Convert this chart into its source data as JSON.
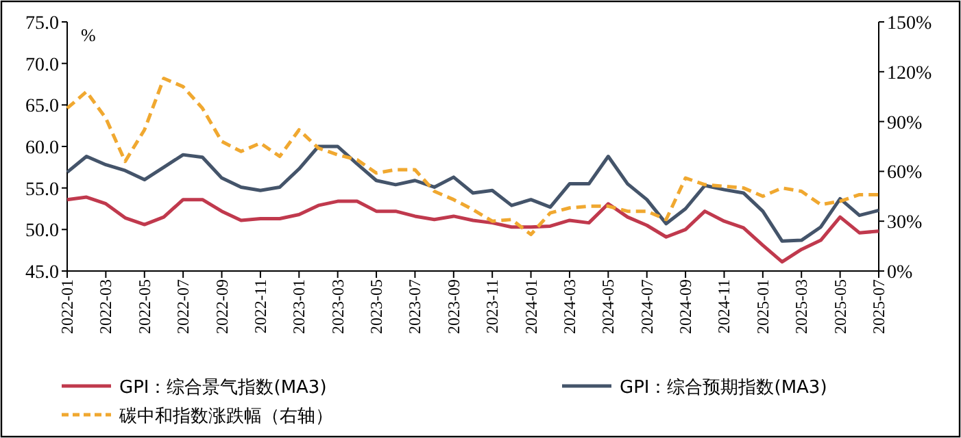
{
  "chart_data": {
    "type": "line",
    "ylabel": "%",
    "categories": [
      "2022-01",
      null,
      "2022-03",
      null,
      "2022-05",
      null,
      "2022-07",
      null,
      "2022-09",
      null,
      "2022-11",
      null,
      "2023-01",
      null,
      "2023-03",
      null,
      "2023-05",
      null,
      "2023-07",
      null,
      "2023-09",
      null,
      "2023-11",
      null,
      "2024-01",
      null,
      "2024-03",
      null,
      "2024-05",
      null,
      "2024-07",
      null,
      "2024-09",
      null,
      "2024-11",
      null,
      "2025-01",
      null,
      "2025-03",
      null,
      "2025-05",
      null,
      "2025-07"
    ],
    "ylim": [
      45,
      75
    ],
    "yticks": [
      {
        "value": 45,
        "label": "45.0"
      },
      {
        "value": 50,
        "label": "50.0"
      },
      {
        "value": 55,
        "label": "55.0"
      },
      {
        "value": 60,
        "label": "60.0"
      },
      {
        "value": 65,
        "label": "65.0"
      },
      {
        "value": 70,
        "label": "70.0"
      },
      {
        "value": 75,
        "label": "75.0"
      }
    ],
    "y2lim": [
      0,
      150
    ],
    "y2ticks": [
      {
        "value": 0,
        "label": "0%"
      },
      {
        "value": 30,
        "label": "30%"
      },
      {
        "value": 60,
        "label": "60%"
      },
      {
        "value": 90,
        "label": "90%"
      },
      {
        "value": 120,
        "label": "120%"
      },
      {
        "value": 150,
        "label": "150%"
      }
    ],
    "grid": false,
    "legend": "bottom",
    "series": [
      {
        "name": "GPI：综合景气指数(MA3)",
        "color": "#c0394d",
        "line_style": "solid",
        "values": [
          53.6,
          53.9,
          53.1,
          51.4,
          50.6,
          51.5,
          53.6,
          53.6,
          52.2,
          51.1,
          51.3,
          51.3,
          51.8,
          52.9,
          53.4,
          53.4,
          52.2,
          52.2,
          51.6,
          51.2,
          51.6,
          51.1,
          50.8,
          50.3,
          50.3,
          50.4,
          51.1,
          50.8,
          53.1,
          51.5,
          50.5,
          49.1,
          50.0,
          52.2,
          51.0,
          50.2,
          48.1,
          46.1,
          47.6,
          48.7,
          51.5,
          49.6,
          49.8
        ]
      },
      {
        "name": "GPI：综合预期指数(MA3)",
        "color": "#44546a",
        "line_style": "solid",
        "values": [
          56.9,
          58.8,
          57.8,
          57.1,
          56.0,
          57.5,
          59.0,
          58.7,
          56.2,
          55.1,
          54.7,
          55.1,
          57.3,
          60.0,
          60.0,
          57.9,
          55.9,
          55.4,
          55.9,
          55.1,
          56.3,
          54.4,
          54.7,
          52.9,
          53.6,
          52.7,
          55.5,
          55.5,
          58.8,
          55.5,
          53.6,
          50.7,
          52.5,
          55.3,
          54.8,
          54.4,
          52.2,
          48.6,
          48.7,
          50.3,
          53.7,
          51.7,
          52.3
        ]
      },
      {
        "name": "碳中和指数涨跌幅（右轴）",
        "color": "#f0a830",
        "line_style": "dashed",
        "axis": "y2",
        "values": [
          98,
          108,
          92,
          66,
          85,
          116,
          111,
          98,
          78,
          72,
          77,
          69,
          85,
          74,
          70,
          67,
          59,
          61,
          61,
          48,
          43,
          37,
          30,
          31,
          22,
          35,
          38,
          39,
          39,
          36,
          36,
          31,
          56,
          52,
          51,
          50,
          45,
          50,
          48,
          40,
          42,
          46,
          46
        ]
      }
    ]
  }
}
